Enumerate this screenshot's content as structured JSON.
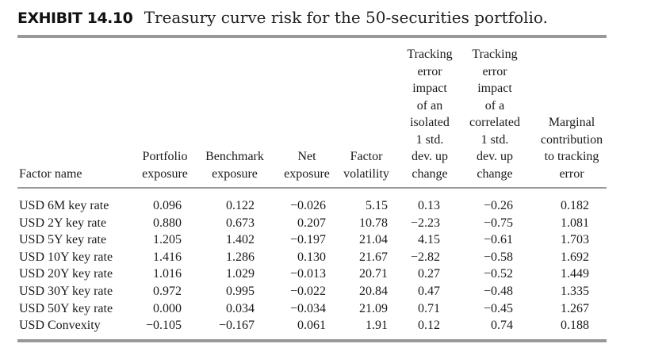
{
  "exhibit": {
    "label": "EXHIBIT 14.10",
    "caption": "Treasury curve risk for the 50-securities portfolio."
  },
  "table": {
    "headers": {
      "factor_name": "Factor name",
      "portfolio_exposure": [
        "Portfolio",
        "exposure"
      ],
      "benchmark_exposure": [
        "Benchmark",
        "exposure"
      ],
      "net_exposure": [
        "Net",
        "exposure"
      ],
      "factor_volatility": [
        "Factor",
        "volatility"
      ],
      "isolated_te_impact": [
        "Tracking",
        "error",
        "impact",
        "of an",
        "isolated",
        "1 std.",
        "dev. up",
        "change"
      ],
      "correlated_te_impact": [
        "Tracking",
        "error",
        "impact",
        "of a",
        "correlated",
        "1 std.",
        "dev. up",
        "change"
      ],
      "marginal_contribution": [
        "Marginal",
        "contribution",
        "to tracking",
        "error"
      ]
    },
    "rows": [
      {
        "name": "USD 6M key rate",
        "portfolio": "0.096",
        "benchmark": "0.122",
        "net": "−0.026",
        "volatility": "5.15",
        "isolated": "0.13",
        "correlated": "−0.26",
        "marginal": "0.182"
      },
      {
        "name": "USD 2Y key rate",
        "portfolio": "0.880",
        "benchmark": "0.673",
        "net": "0.207",
        "volatility": "10.78",
        "isolated": "−2.23",
        "correlated": "−0.75",
        "marginal": "1.081"
      },
      {
        "name": "USD 5Y key rate",
        "portfolio": "1.205",
        "benchmark": "1.402",
        "net": "−0.197",
        "volatility": "21.04",
        "isolated": "4.15",
        "correlated": "−0.61",
        "marginal": "1.703"
      },
      {
        "name": "USD 10Y key rate",
        "portfolio": "1.416",
        "benchmark": "1.286",
        "net": "0.130",
        "volatility": "21.67",
        "isolated": "−2.82",
        "correlated": "−0.58",
        "marginal": "1.692"
      },
      {
        "name": "USD 20Y key rate",
        "portfolio": "1.016",
        "benchmark": "1.029",
        "net": "−0.013",
        "volatility": "20.71",
        "isolated": "0.27",
        "correlated": "−0.52",
        "marginal": "1.449"
      },
      {
        "name": "USD 30Y key rate",
        "portfolio": "0.972",
        "benchmark": "0.995",
        "net": "−0.022",
        "volatility": "20.84",
        "isolated": "0.47",
        "correlated": "−0.48",
        "marginal": "1.335"
      },
      {
        "name": "USD 50Y key rate",
        "portfolio": "0.000",
        "benchmark": "0.034",
        "net": "−0.034",
        "volatility": "21.09",
        "isolated": "0.71",
        "correlated": "−0.45",
        "marginal": "1.267"
      },
      {
        "name": "USD Convexity",
        "portfolio": "−0.105",
        "benchmark": "−0.167",
        "net": "0.061",
        "volatility": "1.91",
        "isolated": "0.12",
        "correlated": "0.74",
        "marginal": "0.188"
      }
    ]
  }
}
